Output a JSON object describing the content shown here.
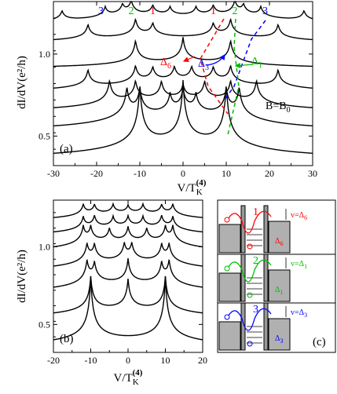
{
  "chart_data": [
    {
      "panel": "(a)",
      "type": "line",
      "xlabel": "V/T",
      "xlabel_sub": "K",
      "xlabel_sup": "(4)",
      "ylabel": "dI/dV(e²/h)",
      "xlim": [
        -30,
        30
      ],
      "ylim": [
        0.32,
        1.32
      ],
      "xticks": [
        "-30",
        "-20",
        "-10",
        "0",
        "10",
        "20",
        "30"
      ],
      "xtick_values": [
        -30,
        -20,
        -10,
        0,
        10,
        20,
        30
      ],
      "yticks": [
        "0.5",
        "1.0"
      ],
      "ytick_values": [
        0.5,
        1.0
      ],
      "annotation": "B=B",
      "annotation_sub": "0",
      "delta_labels": [
        {
          "text": "Δ",
          "sub": "6",
          "color": "#ff0000"
        },
        {
          "text": "Δ",
          "sub": "3",
          "color": "#0000ff"
        },
        {
          "text": "Δ",
          "sub": "1",
          "color": "#00bb00"
        }
      ],
      "peak_labels": [
        {
          "text": "3",
          "color": "#0000ff",
          "x": -19
        },
        {
          "text": "2",
          "color": "#00bb00",
          "x": -12
        },
        {
          "text": "1",
          "color": "#ff0000",
          "x": -7
        },
        {
          "text": "1",
          "color": "#ff0000",
          "x": 7
        },
        {
          "text": "2",
          "color": "#00bb00",
          "x": 12
        },
        {
          "text": "3",
          "color": "#0000ff",
          "x": 19
        }
      ],
      "series": [
        {
          "baseline": 0.33,
          "peaks": [
            {
              "x": -10,
              "h": 0.42
            },
            {
              "x": 0,
              "h": 0.42
            },
            {
              "x": 10,
              "h": 0.42
            }
          ]
        },
        {
          "baseline": 0.5,
          "peaks": [
            {
              "x": -13,
              "h": 0.2
            },
            {
              "x": -10,
              "h": 0.18
            },
            {
              "x": -3,
              "h": 0.13
            },
            {
              "x": 0,
              "h": 0.16
            },
            {
              "x": 3,
              "h": 0.13
            },
            {
              "x": 10,
              "h": 0.18
            },
            {
              "x": 13,
              "h": 0.2
            }
          ]
        },
        {
          "baseline": 0.62,
          "peaks": [
            {
              "x": -17,
              "h": 0.16
            },
            {
              "x": -11,
              "h": 0.14
            },
            {
              "x": -5,
              "h": 0.13
            },
            {
              "x": 0,
              "h": 0.1
            },
            {
              "x": 5,
              "h": 0.13
            },
            {
              "x": 11,
              "h": 0.14
            },
            {
              "x": 17,
              "h": 0.16
            }
          ]
        },
        {
          "baseline": 0.74,
          "peaks": [
            {
              "x": -22,
              "h": 0.12
            },
            {
              "x": -11,
              "h": 0.12
            },
            {
              "x": -7,
              "h": 0.1
            },
            {
              "x": -2,
              "h": 0.1
            },
            {
              "x": 2,
              "h": 0.1
            },
            {
              "x": 7,
              "h": 0.1
            },
            {
              "x": 11,
              "h": 0.12
            },
            {
              "x": 22,
              "h": 0.12
            }
          ]
        },
        {
          "baseline": 0.9,
          "peaks": [
            {
              "x": -11,
              "h": 0.16
            },
            {
              "x": 0,
              "h": 0.17
            },
            {
              "x": 11,
              "h": 0.16
            }
          ]
        },
        {
          "baseline": 1.05,
          "peaks": [
            {
              "x": -22,
              "h": 0.1
            },
            {
              "x": -11,
              "h": 0.12
            },
            {
              "x": -7,
              "h": 0.09
            },
            {
              "x": 7,
              "h": 0.09
            },
            {
              "x": 11,
              "h": 0.12
            },
            {
              "x": 22,
              "h": 0.1
            }
          ]
        },
        {
          "baseline": 1.15,
          "peaks": [
            {
              "x": -28,
              "h": 0.07
            },
            {
              "x": -18,
              "h": 0.07
            },
            {
              "x": -14,
              "h": 0.07
            },
            {
              "x": -12,
              "h": 0.1
            },
            {
              "x": -7,
              "h": 0.07
            },
            {
              "x": -3,
              "h": 0.06
            },
            {
              "x": 3,
              "h": 0.06
            },
            {
              "x": 7,
              "h": 0.07
            },
            {
              "x": 12,
              "h": 0.1
            },
            {
              "x": 14,
              "h": 0.07
            },
            {
              "x": 18,
              "h": 0.07
            },
            {
              "x": 28,
              "h": 0.07
            }
          ]
        }
      ]
    },
    {
      "panel": "(b)",
      "type": "line",
      "xlabel": "V/T",
      "xlabel_sub": "K",
      "xlabel_sup": "(4)",
      "ylabel": "dI/dV(e²/h)",
      "xlim": [
        -20,
        20
      ],
      "ylim": [
        0.32,
        1.3
      ],
      "xticks": [
        "-20",
        "-10",
        "0",
        "10",
        "20"
      ],
      "xtick_values": [
        -20,
        -10,
        0,
        10,
        20
      ],
      "yticks": [
        "0.5",
        "1.0"
      ],
      "ytick_values": [
        0.5,
        1.0
      ],
      "series": [
        {
          "baseline": 0.33,
          "peaks": [
            {
              "x": -10,
              "h": 0.45
            },
            {
              "x": 10,
              "h": 0.45
            }
          ]
        },
        {
          "baseline": 0.52,
          "peaks": [
            {
              "x": -10,
              "h": 0.25
            },
            {
              "x": 0,
              "h": 0.22
            },
            {
              "x": 10,
              "h": 0.25
            }
          ]
        },
        {
          "baseline": 0.68,
          "peaks": [
            {
              "x": -11,
              "h": 0.16
            },
            {
              "x": -9,
              "h": 0.14
            },
            {
              "x": 0,
              "h": 0.18
            },
            {
              "x": 9,
              "h": 0.14
            },
            {
              "x": 11,
              "h": 0.16
            }
          ]
        },
        {
          "baseline": 0.82,
          "peaks": [
            {
              "x": -11,
              "h": 0.13
            },
            {
              "x": -9,
              "h": 0.12
            },
            {
              "x": -1,
              "h": 0.12
            },
            {
              "x": 1,
              "h": 0.12
            },
            {
              "x": 9,
              "h": 0.12
            },
            {
              "x": 11,
              "h": 0.13
            }
          ]
        },
        {
          "baseline": 0.94,
          "peaks": [
            {
              "x": -12,
              "h": 0.12
            },
            {
              "x": -10,
              "h": 0.11
            },
            {
              "x": -5,
              "h": 0.1
            },
            {
              "x": 0,
              "h": 0.11
            },
            {
              "x": 5,
              "h": 0.1
            },
            {
              "x": 10,
              "h": 0.11
            },
            {
              "x": 12,
              "h": 0.12
            }
          ]
        },
        {
          "baseline": 1.05,
          "peaks": [
            {
              "x": -12,
              "h": 0.09
            },
            {
              "x": -9,
              "h": 0.09
            },
            {
              "x": -4,
              "h": 0.08
            },
            {
              "x": 0,
              "h": 0.08
            },
            {
              "x": 4,
              "h": 0.08
            },
            {
              "x": 9,
              "h": 0.09
            },
            {
              "x": 12,
              "h": 0.09
            }
          ]
        },
        {
          "baseline": 1.15,
          "peaks": [
            {
              "x": -12,
              "h": 0.08
            },
            {
              "x": -9,
              "h": 0.07
            },
            {
              "x": -4,
              "h": 0.07
            },
            {
              "x": 0,
              "h": 0.06
            },
            {
              "x": 4,
              "h": 0.07
            },
            {
              "x": 9,
              "h": 0.07
            },
            {
              "x": 12,
              "h": 0.08
            }
          ]
        }
      ]
    },
    {
      "panel": "(c)",
      "type": "diagram",
      "rows": [
        {
          "number": "1",
          "color": "#ff0000",
          "v_label": "v=Δ",
          "v_sub": "6",
          "delta": "Δ",
          "delta_sub": "6"
        },
        {
          "number": "2",
          "color": "#00bb00",
          "v_label": "v=Δ",
          "v_sub": "1",
          "delta": "Δ",
          "delta_sub": "1"
        },
        {
          "number": "3",
          "color": "#0000ff",
          "v_label": "v=Δ",
          "v_sub": "3",
          "delta": "Δ",
          "delta_sub": "3"
        }
      ]
    }
  ]
}
